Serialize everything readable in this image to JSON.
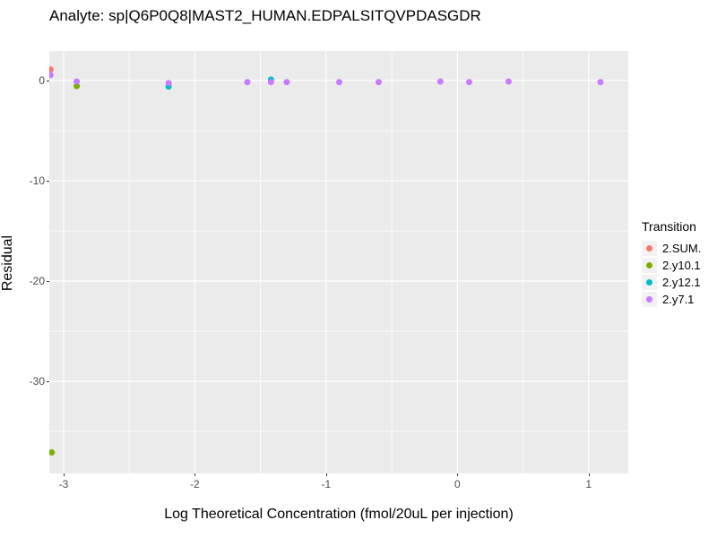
{
  "title": "Analyte: sp|Q6P0Q8|MAST2_HUMAN.EDPALSITQVPDASGDR",
  "colors": {
    "panel_bg": "#EBEBEB",
    "grid": "#FFFFFF",
    "tick_label": "#4D4D4D",
    "tick_mark": "#333333",
    "legend_key_bg": "#F2F2F2"
  },
  "chart_data": {
    "type": "scatter",
    "title": "Analyte: sp|Q6P0Q8|MAST2_HUMAN.EDPALSITQVPDASGDR",
    "xlabel": "Log Theoretical Concentration (fmol/20uL per injection)",
    "ylabel": "Residual",
    "xlim": [
      -3.109,
      1.302
    ],
    "ylim": [
      -39.2,
      2.95
    ],
    "x_ticks": [
      -3,
      -2,
      -1,
      0,
      1
    ],
    "x_tick_labels": [
      "-3",
      "-2",
      "-1",
      "0",
      "1"
    ],
    "y_ticks": [
      0,
      -10,
      -20,
      -30
    ],
    "y_tick_labels": [
      "0",
      "-10",
      "-20",
      "-30"
    ],
    "x_minor_ticks": [
      -2.5,
      -1.5,
      -0.5,
      0.5
    ],
    "y_minor_ticks": [
      -5,
      -15,
      -25,
      -35
    ],
    "grid": "on",
    "legend_title": "Transition",
    "legend_position": "right",
    "point_radius_px": 3.5,
    "series": [
      {
        "name": "2.SUM.",
        "color": "#F8766D",
        "points": [
          {
            "x": -3.1,
            "y": 1.1
          }
        ]
      },
      {
        "name": "2.y10.1",
        "color": "#7CAE00",
        "points": [
          {
            "x": -2.9,
            "y": -0.55
          },
          {
            "x": -3.09,
            "y": -37.1
          }
        ]
      },
      {
        "name": "2.y12.1",
        "color": "#00BFC4",
        "points": [
          {
            "x": -2.2,
            "y": -0.6
          },
          {
            "x": -1.42,
            "y": 0.1
          }
        ]
      },
      {
        "name": "2.y7.1",
        "color": "#C77CFF",
        "points": [
          {
            "x": -3.1,
            "y": 0.55
          },
          {
            "x": -2.9,
            "y": -0.1
          },
          {
            "x": -2.2,
            "y": -0.25
          },
          {
            "x": -1.6,
            "y": -0.15
          },
          {
            "x": -1.42,
            "y": -0.15
          },
          {
            "x": -1.3,
            "y": -0.15
          },
          {
            "x": -0.9,
            "y": -0.15
          },
          {
            "x": -0.6,
            "y": -0.15
          },
          {
            "x": -0.13,
            "y": -0.1
          },
          {
            "x": 0.09,
            "y": -0.15
          },
          {
            "x": 0.39,
            "y": -0.1
          },
          {
            "x": 1.09,
            "y": -0.15
          }
        ]
      }
    ]
  }
}
